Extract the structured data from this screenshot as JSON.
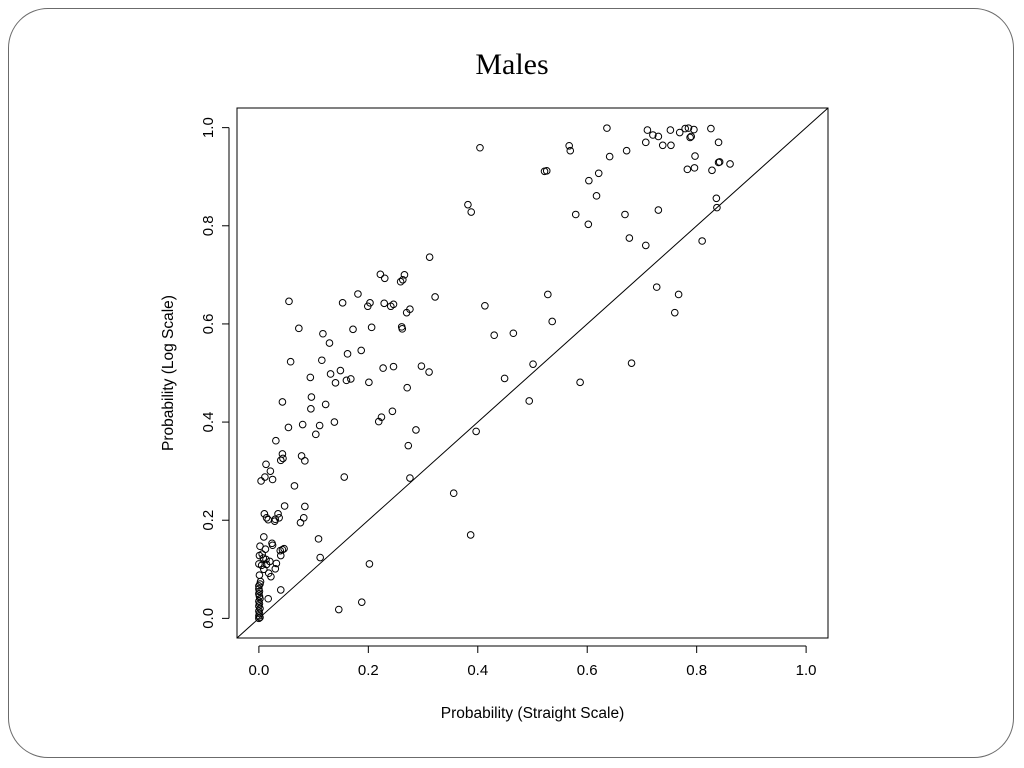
{
  "slide": {
    "title": "Males"
  },
  "chart_data": {
    "type": "scatter",
    "title": "Males",
    "xlabel": "Probability (Straight Scale)",
    "ylabel": "Probability (Log Scale)",
    "xlim": [
      -0.04,
      1.04
    ],
    "ylim": [
      -0.04,
      1.04
    ],
    "xticks": [
      0.0,
      0.2,
      0.4,
      0.6,
      0.8,
      1.0
    ],
    "yticks": [
      0.0,
      0.2,
      0.4,
      0.6,
      0.8,
      1.0
    ],
    "xtick_labels": [
      "0.0",
      "0.2",
      "0.4",
      "0.6",
      "0.8",
      "1.0"
    ],
    "ytick_labels": [
      "0.0",
      "0.2",
      "0.4",
      "0.6",
      "0.8",
      "1.0"
    ],
    "grid": false,
    "reference_line": {
      "type": "identity",
      "slope": 1,
      "intercept": 0
    },
    "marker": "open-circle",
    "points": [
      [
        0.636,
        0.999
      ],
      [
        0.71,
        0.995
      ],
      [
        0.752,
        0.995
      ],
      [
        0.779,
        0.998
      ],
      [
        0.785,
        0.999
      ],
      [
        0.795,
        0.996
      ],
      [
        0.826,
        0.998
      ],
      [
        0.72,
        0.985
      ],
      [
        0.73,
        0.982
      ],
      [
        0.769,
        0.99
      ],
      [
        0.788,
        0.98
      ],
      [
        0.79,
        0.982
      ],
      [
        0.707,
        0.97
      ],
      [
        0.738,
        0.964
      ],
      [
        0.753,
        0.964
      ],
      [
        0.84,
        0.97
      ],
      [
        0.567,
        0.963
      ],
      [
        0.569,
        0.953
      ],
      [
        0.404,
        0.959
      ],
      [
        0.672,
        0.953
      ],
      [
        0.641,
        0.941
      ],
      [
        0.797,
        0.942
      ],
      [
        0.621,
        0.907
      ],
      [
        0.603,
        0.892
      ],
      [
        0.522,
        0.911
      ],
      [
        0.526,
        0.912
      ],
      [
        0.783,
        0.915
      ],
      [
        0.796,
        0.918
      ],
      [
        0.828,
        0.913
      ],
      [
        0.84,
        0.929
      ],
      [
        0.842,
        0.93
      ],
      [
        0.861,
        0.926
      ],
      [
        0.617,
        0.861
      ],
      [
        0.836,
        0.856
      ],
      [
        0.837,
        0.837
      ],
      [
        0.382,
        0.843
      ],
      [
        0.388,
        0.828
      ],
      [
        0.579,
        0.823
      ],
      [
        0.669,
        0.823
      ],
      [
        0.73,
        0.832
      ],
      [
        0.602,
        0.803
      ],
      [
        0.677,
        0.775
      ],
      [
        0.707,
        0.76
      ],
      [
        0.81,
        0.769
      ],
      [
        0.312,
        0.736
      ],
      [
        0.222,
        0.701
      ],
      [
        0.263,
        0.69
      ],
      [
        0.266,
        0.7
      ],
      [
        0.23,
        0.693
      ],
      [
        0.259,
        0.686
      ],
      [
        0.727,
        0.675
      ],
      [
        0.767,
        0.66
      ],
      [
        0.528,
        0.66
      ],
      [
        0.322,
        0.655
      ],
      [
        0.055,
        0.646
      ],
      [
        0.153,
        0.643
      ],
      [
        0.181,
        0.661
      ],
      [
        0.203,
        0.643
      ],
      [
        0.199,
        0.636
      ],
      [
        0.229,
        0.642
      ],
      [
        0.241,
        0.636
      ],
      [
        0.246,
        0.64
      ],
      [
        0.413,
        0.637
      ],
      [
        0.276,
        0.63
      ],
      [
        0.27,
        0.623
      ],
      [
        0.76,
        0.623
      ],
      [
        0.536,
        0.605
      ],
      [
        0.117,
        0.58
      ],
      [
        0.073,
        0.591
      ],
      [
        0.172,
        0.589
      ],
      [
        0.206,
        0.593
      ],
      [
        0.261,
        0.594
      ],
      [
        0.262,
        0.59
      ],
      [
        0.43,
        0.577
      ],
      [
        0.465,
        0.581
      ],
      [
        0.129,
        0.561
      ],
      [
        0.058,
        0.523
      ],
      [
        0.115,
        0.526
      ],
      [
        0.162,
        0.539
      ],
      [
        0.187,
        0.546
      ],
      [
        0.131,
        0.498
      ],
      [
        0.227,
        0.51
      ],
      [
        0.246,
        0.513
      ],
      [
        0.297,
        0.514
      ],
      [
        0.311,
        0.502
      ],
      [
        0.501,
        0.518
      ],
      [
        0.681,
        0.52
      ],
      [
        0.094,
        0.491
      ],
      [
        0.149,
        0.505
      ],
      [
        0.16,
        0.485
      ],
      [
        0.168,
        0.488
      ],
      [
        0.14,
        0.48
      ],
      [
        0.201,
        0.481
      ],
      [
        0.449,
        0.489
      ],
      [
        0.587,
        0.481
      ],
      [
        0.271,
        0.47
      ],
      [
        0.043,
        0.441
      ],
      [
        0.096,
        0.451
      ],
      [
        0.122,
        0.436
      ],
      [
        0.095,
        0.427
      ],
      [
        0.138,
        0.4
      ],
      [
        0.224,
        0.41
      ],
      [
        0.244,
        0.422
      ],
      [
        0.219,
        0.401
      ],
      [
        0.494,
        0.443
      ],
      [
        0.054,
        0.389
      ],
      [
        0.08,
        0.395
      ],
      [
        0.111,
        0.393
      ],
      [
        0.104,
        0.375
      ],
      [
        0.397,
        0.381
      ],
      [
        0.287,
        0.384
      ],
      [
        0.031,
        0.362
      ],
      [
        0.273,
        0.352
      ],
      [
        0.043,
        0.335
      ],
      [
        0.044,
        0.326
      ],
      [
        0.078,
        0.331
      ],
      [
        0.084,
        0.321
      ],
      [
        0.04,
        0.322
      ],
      [
        0.013,
        0.314
      ],
      [
        0.021,
        0.3
      ],
      [
        0.004,
        0.28
      ],
      [
        0.025,
        0.283
      ],
      [
        0.011,
        0.288
      ],
      [
        0.065,
        0.27
      ],
      [
        0.156,
        0.288
      ],
      [
        0.276,
        0.286
      ],
      [
        0.356,
        0.255
      ],
      [
        0.047,
        0.229
      ],
      [
        0.084,
        0.228
      ],
      [
        0.01,
        0.213
      ],
      [
        0.014,
        0.205
      ],
      [
        0.035,
        0.213
      ],
      [
        0.03,
        0.202
      ],
      [
        0.017,
        0.201
      ],
      [
        0.029,
        0.198
      ],
      [
        0.037,
        0.205
      ],
      [
        0.082,
        0.205
      ],
      [
        0.076,
        0.195
      ],
      [
        0.387,
        0.17
      ],
      [
        0.109,
        0.162
      ],
      [
        0.009,
        0.166
      ],
      [
        0.024,
        0.153
      ],
      [
        0.025,
        0.149
      ],
      [
        0.046,
        0.142
      ],
      [
        0.039,
        0.138
      ],
      [
        0.04,
        0.128
      ],
      [
        0.043,
        0.14
      ],
      [
        0.002,
        0.147
      ],
      [
        0.012,
        0.141
      ],
      [
        0.006,
        0.131
      ],
      [
        0.001,
        0.128
      ],
      [
        0.008,
        0.123
      ],
      [
        0.013,
        0.12
      ],
      [
        0.112,
        0.124
      ],
      [
        0.02,
        0.116
      ],
      [
        0.014,
        0.11
      ],
      [
        0.032,
        0.112
      ],
      [
        0.005,
        0.108
      ],
      [
        0.0,
        0.111
      ],
      [
        0.202,
        0.111
      ],
      [
        0.009,
        0.1
      ],
      [
        0.03,
        0.101
      ],
      [
        0.018,
        0.092
      ],
      [
        0.022,
        0.085
      ],
      [
        0.001,
        0.088
      ],
      [
        0.003,
        0.075
      ],
      [
        0.002,
        0.07
      ],
      [
        0.0,
        0.066
      ],
      [
        0.0,
        0.06
      ],
      [
        0.001,
        0.055
      ],
      [
        0.04,
        0.058
      ],
      [
        0.017,
        0.04
      ],
      [
        0.0,
        0.05
      ],
      [
        0.001,
        0.045
      ],
      [
        0.002,
        0.04
      ],
      [
        0.0,
        0.035
      ],
      [
        0.001,
        0.03
      ],
      [
        0.0,
        0.025
      ],
      [
        0.002,
        0.02
      ],
      [
        0.0,
        0.015
      ],
      [
        0.001,
        0.01
      ],
      [
        0.0,
        0.005
      ],
      [
        0.002,
        0.002
      ],
      [
        0.0,
        0.0
      ],
      [
        0.146,
        0.018
      ],
      [
        0.188,
        0.033
      ]
    ]
  }
}
